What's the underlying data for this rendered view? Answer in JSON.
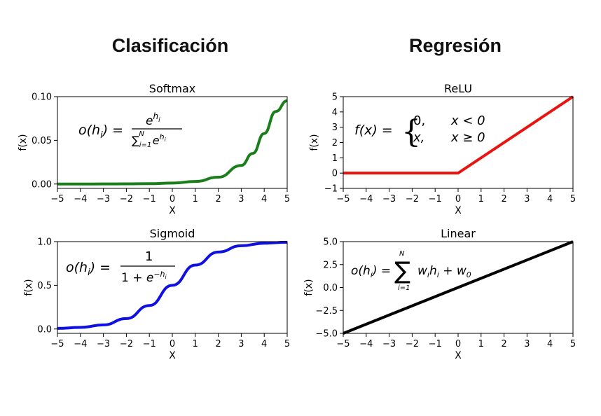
{
  "headings": {
    "left": "Clasificación",
    "right": "Regresión"
  },
  "chart_data": [
    {
      "type": "line",
      "title": "Softmax",
      "xlabel": "X",
      "ylabel": "f(x)",
      "xlim": [
        -5,
        5
      ],
      "ylim": [
        -0.005,
        0.1
      ],
      "xticks": [
        "−5",
        "−4",
        "−3",
        "−2",
        "−1",
        "0",
        "1",
        "2",
        "3",
        "4",
        "5"
      ],
      "yticks": [
        "0.00",
        "0.05",
        "0.10"
      ],
      "ytick_values": [
        0,
        0.05,
        0.1
      ],
      "color": "#1a7f1a",
      "series": [
        {
          "x": [
            -5,
            -4,
            -3,
            -2,
            -1,
            0,
            1,
            2,
            3,
            3.5,
            4,
            4.5,
            5
          ],
          "y": [
            0.0,
            0.0,
            0.0001,
            0.0002,
            0.0004,
            0.0011,
            0.0029,
            0.0078,
            0.0213,
            0.035,
            0.0578,
            0.083,
            0.0953
          ]
        }
      ],
      "formula": "o(hᵢ) = e^hᵢ / Σᵢ₌₁ᴺ e^hᵢ"
    },
    {
      "type": "line",
      "title": "ReLU",
      "xlabel": "X",
      "ylabel": "f(x)",
      "xlim": [
        -5,
        5
      ],
      "ylim": [
        -1,
        5
      ],
      "xticks": [
        "−5",
        "−4",
        "−3",
        "−2",
        "−1",
        "0",
        "1",
        "2",
        "3",
        "4",
        "5"
      ],
      "yticks": [
        "−1",
        "0",
        "1",
        "2",
        "3",
        "4",
        "5"
      ],
      "ytick_values": [
        -1,
        0,
        1,
        2,
        3,
        4,
        5
      ],
      "color": "#e8140f",
      "series": [
        {
          "x": [
            -5,
            0,
            5
          ],
          "y": [
            0,
            0,
            5
          ]
        }
      ],
      "formula": "f(x) = { 0, x < 0 ; x, x ≥ 0 }"
    },
    {
      "type": "line",
      "title": "Sigmoid",
      "xlabel": "X",
      "ylabel": "f(x)",
      "xlim": [
        -5,
        5
      ],
      "ylim": [
        -0.05,
        1.0
      ],
      "xticks": [
        "−5",
        "−4",
        "−3",
        "−2",
        "−1",
        "0",
        "1",
        "2",
        "3",
        "4",
        "5"
      ],
      "yticks": [
        "0.0",
        "0.5",
        "1.0"
      ],
      "ytick_values": [
        0,
        0.5,
        1
      ],
      "color": "#1010e0",
      "series": [
        {
          "x": [
            -5,
            -4,
            -3,
            -2,
            -1,
            0,
            1,
            2,
            3,
            4,
            5
          ],
          "y": [
            0.0067,
            0.018,
            0.047,
            0.119,
            0.269,
            0.5,
            0.731,
            0.881,
            0.953,
            0.982,
            0.993
          ]
        }
      ],
      "formula": "o(hᵢ) = 1 / (1 + e^−hᵢ)"
    },
    {
      "type": "line",
      "title": "Linear",
      "xlabel": "X",
      "ylabel": "f(x)",
      "xlim": [
        -5,
        5
      ],
      "ylim": [
        -5,
        5
      ],
      "xticks": [
        "−5",
        "−4",
        "−3",
        "−2",
        "−1",
        "0",
        "1",
        "2",
        "3",
        "4",
        "5"
      ],
      "yticks": [
        "−5.0",
        "−2.5",
        "0.0",
        "2.5",
        "5.0"
      ],
      "ytick_values": [
        -5,
        -2.5,
        0,
        2.5,
        5
      ],
      "color": "#000000",
      "series": [
        {
          "x": [
            -5,
            5
          ],
          "y": [
            -5,
            5
          ]
        }
      ],
      "formula": "o(hᵢ) = Σᵢ₌₁ᴺ wᵢhᵢ + w₀"
    }
  ]
}
